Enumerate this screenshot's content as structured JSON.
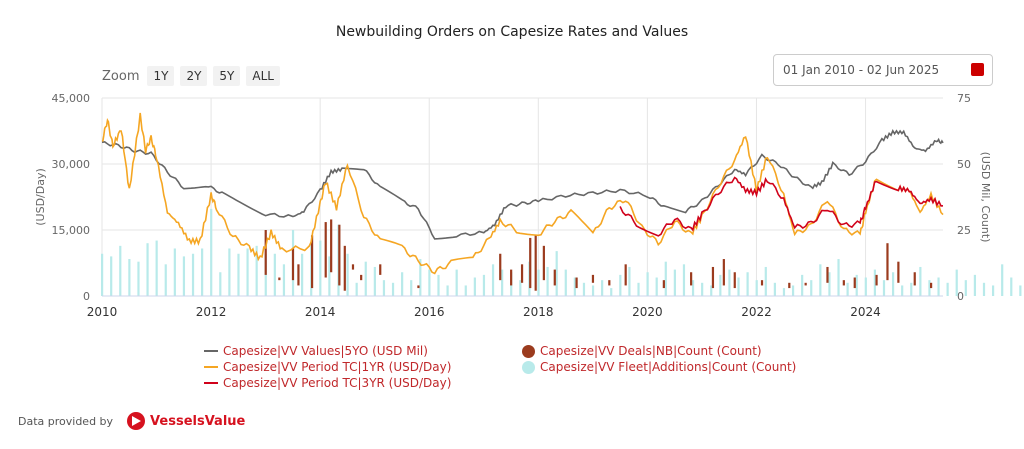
{
  "chart_data": {
    "type": "line",
    "title": "Newbuilding Orders on Capesize Rates and Values",
    "ylabel_left": "(USD/Day)",
    "ylabel_right": "(USD Mil, Count)",
    "ylim_left": [
      0,
      45000
    ],
    "ylim_right": [
      0,
      75
    ],
    "yticks_left": [
      "0",
      "15,000",
      "30,000",
      "45,000"
    ],
    "yticks_right": [
      "0",
      "25",
      "50",
      "75"
    ],
    "xticks": [
      "2010",
      "2012",
      "2014",
      "2016",
      "2018",
      "2020",
      "2022",
      "2024"
    ],
    "xlim": [
      2010,
      2025.42
    ],
    "grid": true,
    "legend_position": "bottom",
    "series": [
      {
        "name": "Capesize|VV Values|5YO (USD Mil)",
        "axis": "right",
        "color": "#666666",
        "type": "line",
        "points": [
          [
            2010,
            58
          ],
          [
            2010.3,
            57
          ],
          [
            2010.6,
            55
          ],
          [
            2010.9,
            54
          ],
          [
            2011.2,
            47
          ],
          [
            2011.5,
            41
          ],
          [
            2011.9,
            42
          ],
          [
            2012.2,
            39
          ],
          [
            2012.6,
            35
          ],
          [
            2013,
            31
          ],
          [
            2013.5,
            30
          ],
          [
            2013.7,
            32
          ],
          [
            2014,
            40
          ],
          [
            2014.2,
            47
          ],
          [
            2014.4,
            48
          ],
          [
            2014.8,
            48
          ],
          [
            2015.1,
            41
          ],
          [
            2015.5,
            36
          ],
          [
            2015.8,
            33
          ],
          [
            2016.1,
            22
          ],
          [
            2016.5,
            23
          ],
          [
            2017,
            24
          ],
          [
            2017.2,
            27
          ],
          [
            2017.4,
            34
          ],
          [
            2017.7,
            35
          ],
          [
            2018,
            36
          ],
          [
            2018.5,
            38
          ],
          [
            2019,
            39
          ],
          [
            2019.5,
            40
          ],
          [
            2020,
            38
          ],
          [
            2020.3,
            34
          ],
          [
            2020.7,
            32
          ],
          [
            2021,
            36
          ],
          [
            2021.3,
            42
          ],
          [
            2021.6,
            48
          ],
          [
            2021.8,
            46
          ],
          [
            2022.1,
            53
          ],
          [
            2022.4,
            50
          ],
          [
            2022.7,
            45
          ],
          [
            2023,
            41
          ],
          [
            2023.2,
            43
          ],
          [
            2023.4,
            50
          ],
          [
            2023.7,
            46
          ],
          [
            2024,
            51
          ],
          [
            2024.3,
            59
          ],
          [
            2024.5,
            62
          ],
          [
            2024.7,
            62
          ],
          [
            2024.9,
            56
          ],
          [
            2025.1,
            55
          ],
          [
            2025.3,
            59
          ],
          [
            2025.42,
            58
          ]
        ]
      },
      {
        "name": "Capesize|VV Period TC|1YR (USD/Day)",
        "axis": "left",
        "color": "#f5a623",
        "type": "line",
        "points": [
          [
            2010,
            35000
          ],
          [
            2010.1,
            40000
          ],
          [
            2010.2,
            34000
          ],
          [
            2010.35,
            38000
          ],
          [
            2010.5,
            24000
          ],
          [
            2010.7,
            41000
          ],
          [
            2010.8,
            33000
          ],
          [
            2010.9,
            36000
          ],
          [
            2011.0,
            31500
          ],
          [
            2011.2,
            19000
          ],
          [
            2011.4,
            16500
          ],
          [
            2011.6,
            12500
          ],
          [
            2011.8,
            12500
          ],
          [
            2012,
            23000
          ],
          [
            2012.1,
            20000
          ],
          [
            2012.4,
            13500
          ],
          [
            2012.7,
            11000
          ],
          [
            2012.9,
            8500
          ],
          [
            2013.1,
            14500
          ],
          [
            2013.3,
            10500
          ],
          [
            2013.8,
            11000
          ],
          [
            2014,
            21000
          ],
          [
            2014.1,
            26000
          ],
          [
            2014.3,
            20000
          ],
          [
            2014.5,
            30000
          ],
          [
            2014.8,
            18000
          ],
          [
            2015.1,
            12500
          ],
          [
            2015.5,
            11000
          ],
          [
            2015.8,
            8000
          ],
          [
            2016.1,
            5500
          ],
          [
            2016.4,
            7500
          ],
          [
            2016.8,
            8500
          ],
          [
            2017.1,
            13000
          ],
          [
            2017.3,
            17000
          ],
          [
            2017.6,
            15000
          ],
          [
            2018,
            14000
          ],
          [
            2018.3,
            17000
          ],
          [
            2018.6,
            19000
          ],
          [
            2019,
            14000
          ],
          [
            2019.3,
            20000
          ],
          [
            2019.6,
            22000
          ],
          [
            2019.9,
            15500
          ],
          [
            2020.2,
            12000
          ],
          [
            2020.5,
            17000
          ],
          [
            2020.8,
            14000
          ],
          [
            2021,
            18000
          ],
          [
            2021.3,
            25000
          ],
          [
            2021.6,
            31000
          ],
          [
            2021.8,
            36500
          ],
          [
            2022,
            24000
          ],
          [
            2022.2,
            32000
          ],
          [
            2022.5,
            23000
          ],
          [
            2022.7,
            14000
          ],
          [
            2023,
            16000
          ],
          [
            2023.3,
            22000
          ],
          [
            2023.6,
            15000
          ],
          [
            2023.9,
            14000
          ],
          [
            2024,
            19000
          ],
          [
            2024.2,
            27000
          ],
          [
            2024.6,
            24500
          ],
          [
            2024.8,
            24000
          ],
          [
            2025,
            19000
          ],
          [
            2025.2,
            23000
          ],
          [
            2025.42,
            18500
          ]
        ]
      },
      {
        "name": "Capesize|VV Period TC|3YR (USD/Day)",
        "axis": "left",
        "color": "#d0021b",
        "type": "line",
        "points": [
          [
            2019.5,
            20000
          ],
          [
            2019.8,
            16500
          ],
          [
            2020.2,
            14000
          ],
          [
            2020.5,
            17500
          ],
          [
            2020.8,
            15000
          ],
          [
            2021,
            18500
          ],
          [
            2021.3,
            23500
          ],
          [
            2021.6,
            27000
          ],
          [
            2021.8,
            24000
          ],
          [
            2022,
            23500
          ],
          [
            2022.2,
            26500
          ],
          [
            2022.5,
            22000
          ],
          [
            2022.7,
            15500
          ],
          [
            2023,
            16500
          ],
          [
            2023.3,
            20000
          ],
          [
            2023.6,
            16000
          ],
          [
            2023.9,
            16500
          ],
          [
            2024,
            20000
          ],
          [
            2024.2,
            26500
          ],
          [
            2024.6,
            24500
          ],
          [
            2024.8,
            24000
          ],
          [
            2025,
            21000
          ],
          [
            2025.2,
            22000
          ],
          [
            2025.42,
            20500
          ]
        ]
      },
      {
        "name": "Capesize|VV Deals|NB|Count (Count)",
        "axis": "right",
        "color": "#9b3b1e",
        "type": "bar",
        "points": [
          [
            2013,
            8,
            25
          ],
          [
            2013.25,
            6,
            7
          ],
          [
            2013.5,
            6,
            18
          ],
          [
            2013.6,
            4,
            12
          ],
          [
            2013.85,
            3,
            23
          ],
          [
            2014.1,
            7,
            28
          ],
          [
            2014.2,
            9,
            29
          ],
          [
            2014.35,
            4,
            27
          ],
          [
            2014.45,
            2,
            19
          ],
          [
            2014.6,
            10,
            12
          ],
          [
            2014.75,
            6,
            8
          ],
          [
            2015.1,
            8,
            12
          ],
          [
            2015.3,
            6,
            6
          ],
          [
            2015.8,
            3,
            4
          ],
          [
            2017.3,
            6,
            16
          ],
          [
            2017.5,
            4,
            10
          ],
          [
            2017.7,
            5,
            12
          ],
          [
            2017.85,
            3,
            22
          ],
          [
            2017.95,
            2,
            23
          ],
          [
            2018.1,
            6,
            19
          ],
          [
            2018.3,
            4,
            10
          ],
          [
            2018.7,
            3,
            7
          ],
          [
            2019,
            5,
            8
          ],
          [
            2019.3,
            4,
            6
          ],
          [
            2019.6,
            4,
            12
          ],
          [
            2020.3,
            3,
            6
          ],
          [
            2020.8,
            4,
            9
          ],
          [
            2021.2,
            3,
            11
          ],
          [
            2021.4,
            4,
            14
          ],
          [
            2021.6,
            3,
            9
          ],
          [
            2022.1,
            4,
            6
          ],
          [
            2022.6,
            3,
            5
          ],
          [
            2022.9,
            4,
            5
          ],
          [
            2023.3,
            5,
            11
          ],
          [
            2023.6,
            4,
            6
          ],
          [
            2023.8,
            3,
            7
          ],
          [
            2024.2,
            4,
            8
          ],
          [
            2024.4,
            6,
            20
          ],
          [
            2024.6,
            5,
            13
          ],
          [
            2024.9,
            4,
            9
          ],
          [
            2025.2,
            3,
            5
          ]
        ]
      },
      {
        "name": "Capesize|VV Fleet|Additions|Count (Count)",
        "axis": "right",
        "color": "#b8eaea",
        "type": "bar",
        "values_start": 2010,
        "values_step": 0.1667,
        "values": [
          16,
          15,
          19,
          14,
          13,
          20,
          21,
          12,
          18,
          15,
          16,
          18,
          33,
          9,
          18,
          16,
          18,
          19,
          16,
          16,
          12,
          25,
          16,
          20,
          21,
          15,
          27,
          16,
          5,
          13,
          11,
          6,
          5,
          9,
          6,
          14,
          10,
          8,
          4,
          10,
          4,
          7,
          8,
          12,
          10,
          9,
          6,
          13,
          10,
          11,
          17,
          10,
          7,
          5,
          4,
          6,
          3,
          8,
          11,
          5,
          9,
          7,
          13,
          10,
          12,
          6,
          5,
          4,
          8,
          10,
          7,
          9,
          6,
          11,
          5,
          3,
          4,
          8,
          6,
          12,
          9,
          14,
          5,
          8,
          7,
          10,
          6,
          9,
          4,
          5,
          11,
          6,
          7,
          5,
          10,
          6,
          8,
          5,
          4,
          12,
          7,
          4,
          5,
          6,
          9,
          3,
          8,
          5,
          5,
          2,
          3,
          11,
          6,
          4,
          7,
          3,
          6,
          4,
          8,
          5
        ]
      }
    ]
  },
  "controls": {
    "zoom_label": "Zoom",
    "zoom_buttons": [
      "1Y",
      "2Y",
      "5Y",
      "ALL"
    ],
    "date_range": "01 Jan 2010 - 02 Jun 2025"
  },
  "footer": {
    "provided_by": "Data provided by",
    "brand": "VesselsValue"
  },
  "colors": {
    "accent": "#d6121f",
    "grid": "#e6e6e6"
  }
}
